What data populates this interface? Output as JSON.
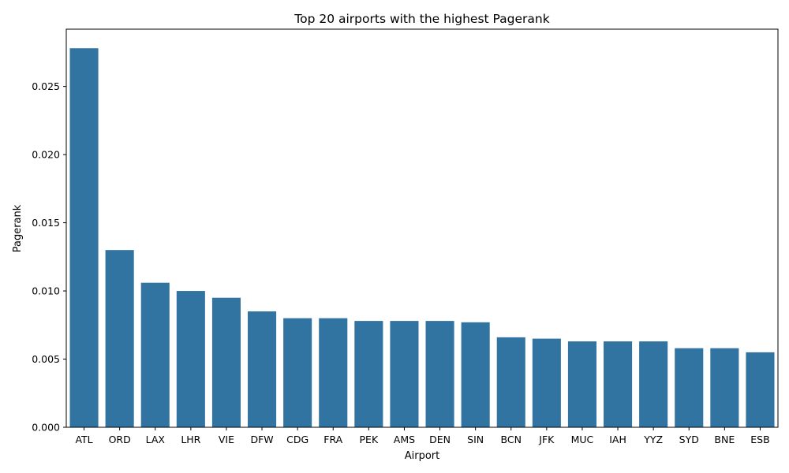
{
  "chart_data": {
    "type": "bar",
    "title": "Top 20 airports with the highest Pagerank",
    "xlabel": "Airport",
    "ylabel": "Pagerank",
    "categories": [
      "ATL",
      "ORD",
      "LAX",
      "LHR",
      "VIE",
      "DFW",
      "CDG",
      "FRA",
      "PEK",
      "AMS",
      "DEN",
      "SIN",
      "BCN",
      "JFK",
      "MUC",
      "IAH",
      "YYZ",
      "SYD",
      "BNE",
      "ESB"
    ],
    "values": [
      0.0278,
      0.013,
      0.0106,
      0.01,
      0.0095,
      0.0085,
      0.008,
      0.008,
      0.0078,
      0.0078,
      0.0078,
      0.0077,
      0.0066,
      0.0065,
      0.0063,
      0.0063,
      0.0063,
      0.0058,
      0.0058,
      0.0055
    ],
    "ylim": [
      0,
      0.0292
    ],
    "yticks": [
      "0.000",
      "0.005",
      "0.010",
      "0.015",
      "0.020",
      "0.025"
    ],
    "ytick_values": [
      0,
      0.005,
      0.01,
      0.015,
      0.02,
      0.025
    ],
    "grid": false,
    "legend": "none",
    "bar_color": "#3274a1"
  }
}
